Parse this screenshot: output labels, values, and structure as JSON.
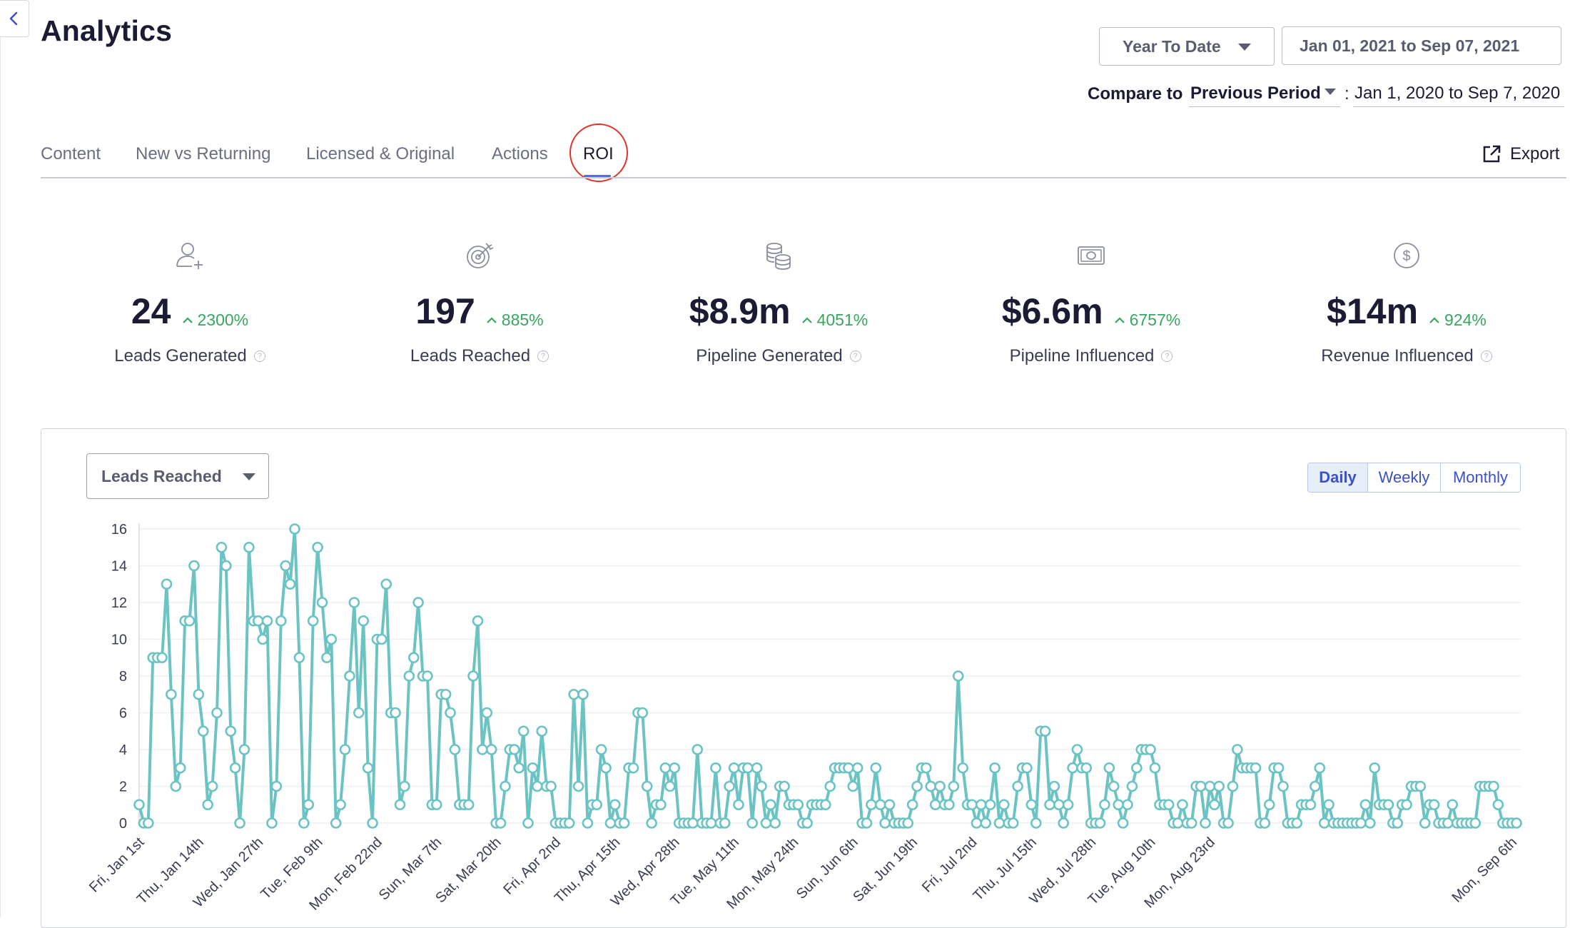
{
  "page": {
    "title": "Analytics"
  },
  "period": {
    "preset": "Year To Date",
    "range": "Jan 01, 2021 to Sep 07, 2021",
    "compare_label": "Compare to",
    "compare_preset": "Previous Period",
    "compare_range": "Jan 1, 2020 to Sep 7, 2020"
  },
  "tabs": [
    {
      "label": "Content"
    },
    {
      "label": "New vs Returning"
    },
    {
      "label": "Licensed & Original"
    },
    {
      "label": "Actions"
    },
    {
      "label": "ROI",
      "active": true
    }
  ],
  "export_label": "Export",
  "kpis": [
    {
      "value": "24",
      "delta": "2300%",
      "label": "Leads Generated",
      "icon": "user-plus-icon"
    },
    {
      "value": "197",
      "delta": "885%",
      "label": "Leads Reached",
      "icon": "target-icon"
    },
    {
      "value": "$8.9m",
      "delta": "4051%",
      "label": "Pipeline Generated",
      "icon": "coins-icon"
    },
    {
      "value": "$6.6m",
      "delta": "6757%",
      "label": "Pipeline Influenced",
      "icon": "banknote-icon"
    },
    {
      "value": "$14m",
      "delta": "924%",
      "label": "Revenue Influenced",
      "icon": "dollar-circle-icon"
    }
  ],
  "colors": {
    "accent": "#3d50c8",
    "positive": "#38a660",
    "series": "#6cc3c3",
    "highlight_circle": "#e0342b"
  },
  "chart": {
    "metric": "Leads Reached",
    "granularity": [
      "Daily",
      "Weekly",
      "Monthly"
    ],
    "active_granularity": "Daily"
  },
  "chart_data": {
    "type": "line",
    "title": "",
    "xlabel": "",
    "ylabel": "",
    "ylim": [
      0,
      16
    ],
    "yticks": [
      0,
      2,
      4,
      6,
      8,
      10,
      12,
      14,
      16
    ],
    "grid": true,
    "x_start": "2021-01-01",
    "x_tick_labels": [
      "Fri, Jan 1st",
      "Thu, Jan 14th",
      "Wed, Jan 27th",
      "Tue, Feb 9th",
      "Mon, Feb 22nd",
      "Sun, Mar 7th",
      "Sat, Mar 20th",
      "Fri, Apr 2nd",
      "Thu, Apr 15th",
      "Wed, Apr 28th",
      "Tue, May 11th",
      "Mon, May 24th",
      "Sun, Jun 6th",
      "Sat, Jun 19th",
      "Fri, Jul 2nd",
      "Thu, Jul 15th",
      "Wed, Jul 28th",
      "Tue, Aug 10th",
      "Mon, Aug 23rd",
      "Mon, Sep 6th"
    ],
    "series": [
      {
        "values": [
          1,
          0,
          0,
          9,
          9,
          9,
          13,
          7,
          2,
          3,
          11,
          11,
          14,
          7,
          5,
          1,
          2,
          6,
          15,
          14,
          5,
          3,
          0,
          4,
          15,
          11,
          11,
          10,
          11,
          0,
          2,
          11,
          14,
          13,
          16,
          9,
          0,
          1,
          11,
          15,
          12,
          9,
          10,
          0,
          1,
          4,
          8,
          12,
          6,
          11,
          3,
          0,
          10,
          10,
          13,
          6,
          6,
          1,
          2,
          8,
          9,
          12,
          8,
          8,
          1,
          1,
          7,
          7,
          6,
          4,
          1,
          1,
          1,
          8,
          11,
          4,
          6,
          4,
          0,
          0,
          2,
          4,
          4,
          3,
          5,
          0,
          3,
          2,
          5,
          2,
          2,
          0,
          0,
          0,
          0,
          7,
          2,
          7,
          0,
          1,
          1,
          4,
          3,
          0,
          1,
          0,
          0,
          3,
          3,
          6,
          6,
          2,
          0,
          1,
          1,
          3,
          2,
          3,
          0,
          0,
          0,
          0,
          4,
          0,
          0,
          0,
          3,
          0,
          0,
          2,
          3,
          1,
          3,
          3,
          0,
          3,
          2,
          0,
          1,
          0,
          2,
          2,
          1,
          1,
          1,
          0,
          0,
          1,
          1,
          1,
          1,
          2,
          3,
          3,
          3,
          3,
          2,
          3,
          0,
          0,
          1,
          3,
          1,
          0,
          1,
          0,
          0,
          0,
          0,
          1,
          2,
          3,
          3,
          2,
          1,
          2,
          1,
          1,
          2,
          8,
          3,
          1,
          1,
          0,
          1,
          0,
          1,
          3,
          0,
          1,
          0,
          0,
          2,
          3,
          3,
          1,
          0,
          5,
          5,
          1,
          2,
          1,
          0,
          1,
          3,
          4,
          3,
          3,
          0,
          0,
          0,
          1,
          3,
          2,
          1,
          0,
          1,
          2,
          3,
          4,
          4,
          4,
          3,
          1,
          1,
          1,
          0,
          0,
          1,
          0,
          0,
          2,
          2,
          0,
          2,
          1,
          2,
          0,
          0,
          2,
          4,
          3,
          3,
          3,
          3,
          0,
          0,
          1,
          3,
          3,
          2,
          0,
          0,
          0,
          1,
          1,
          1,
          2,
          3,
          0,
          1,
          0,
          0,
          0,
          0,
          0,
          0,
          0,
          1,
          0,
          3,
          1,
          1,
          1,
          0,
          0,
          1,
          1,
          2,
          2,
          2,
          0,
          1,
          1,
          0,
          0,
          0,
          1,
          0,
          0,
          0,
          0,
          0,
          2,
          2,
          2,
          2,
          1,
          0,
          0,
          0,
          0
        ]
      }
    ]
  }
}
